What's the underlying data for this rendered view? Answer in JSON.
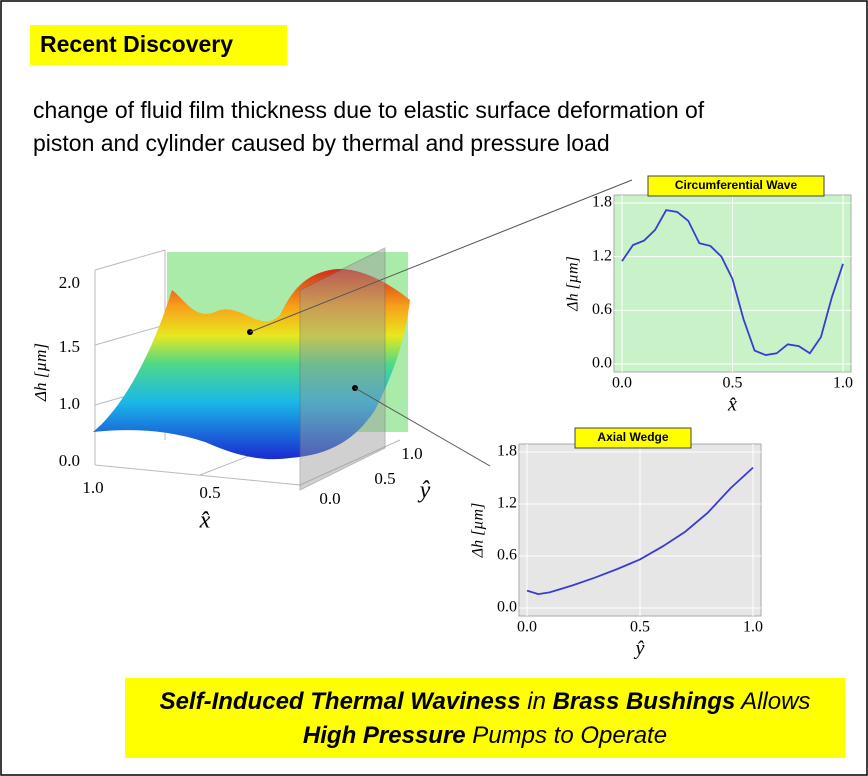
{
  "header": {
    "title": "Recent Discovery"
  },
  "description": [
    "change of fluid film thickness due to elastic surface deformation of",
    "piston and cylinder caused by thermal and pressure load"
  ],
  "surface": {
    "zlabel": "Δh  [µm]",
    "xlabel": "x̂",
    "ylabel": "ŷ",
    "zticks": [
      "0.0",
      "1.0",
      "1.5",
      "2.0"
    ],
    "xticks": [
      "1.0",
      "0.5"
    ],
    "yticks": [
      "0.0",
      "0.5",
      "1.0"
    ]
  },
  "chart_data": [
    {
      "type": "line",
      "title": "Circumferential Wave",
      "xlabel": "x̂",
      "ylabel": "Δh [µm]",
      "x": [
        0,
        0.05,
        0.1,
        0.15,
        0.2,
        0.25,
        0.3,
        0.35,
        0.4,
        0.45,
        0.5,
        0.55,
        0.6,
        0.65,
        0.7,
        0.75,
        0.8,
        0.85,
        0.9,
        0.95,
        1.0
      ],
      "values": [
        1.15,
        1.33,
        1.38,
        1.5,
        1.72,
        1.7,
        1.6,
        1.35,
        1.32,
        1.2,
        0.95,
        0.5,
        0.15,
        0.1,
        0.12,
        0.22,
        0.2,
        0.12,
        0.3,
        0.75,
        1.12
      ],
      "color": "#3b3bd0",
      "background": "#c9f2c9",
      "xlim": [
        0,
        1
      ],
      "ylim": [
        0,
        1.8
      ],
      "xticks": [
        {
          "value": 0,
          "label": "0.0"
        },
        0.5,
        {
          "value": 1,
          "label": "1.0"
        }
      ],
      "yticks": [
        {
          "value": 0,
          "label": "0.0"
        },
        0.6,
        1.2,
        1.8
      ],
      "grid": true
    },
    {
      "type": "line",
      "title": "Axial Wedge",
      "xlabel": "ŷ",
      "ylabel": "Δh [µm]",
      "x": [
        0,
        0.05,
        0.1,
        0.2,
        0.3,
        0.4,
        0.5,
        0.6,
        0.7,
        0.8,
        0.9,
        1.0
      ],
      "values": [
        0.2,
        0.16,
        0.18,
        0.26,
        0.35,
        0.45,
        0.56,
        0.71,
        0.88,
        1.1,
        1.38,
        1.62
      ],
      "color": "#3b3bd0",
      "background": "#e6e6e6",
      "xlim": [
        0,
        1
      ],
      "ylim": [
        0,
        1.8
      ],
      "xticks": [
        {
          "value": 0,
          "label": "0.0"
        },
        0.5,
        {
          "value": 1,
          "label": "1.0"
        }
      ],
      "yticks": [
        {
          "value": 0,
          "label": "0.0"
        },
        0.6,
        1.2,
        1.8
      ],
      "grid": true
    }
  ],
  "footer": {
    "lines": [
      [
        {
          "text": "Self-Induced Thermal Waviness",
          "bold": true
        },
        {
          "text": " in ",
          "bold": false
        },
        {
          "text": "Brass Bushings",
          "bold": true
        },
        {
          "text": " Allows",
          "bold": false
        }
      ],
      [
        {
          "text": "High Pressure",
          "bold": true
        },
        {
          "text": " Pumps to Operate",
          "bold": false
        }
      ]
    ]
  }
}
